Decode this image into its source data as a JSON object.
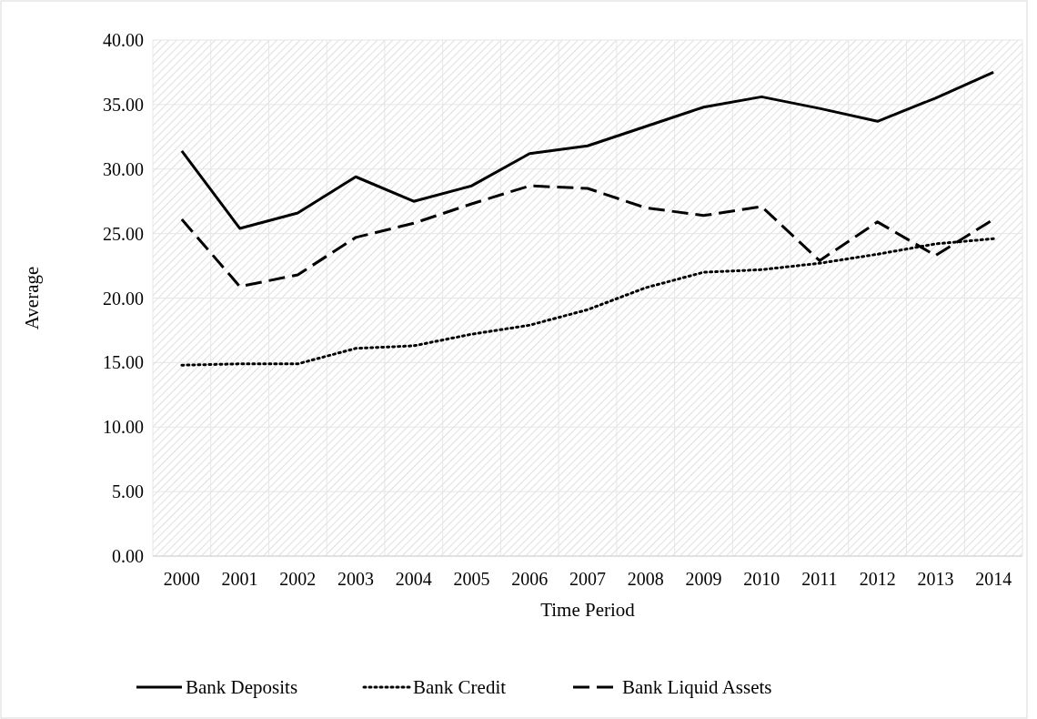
{
  "chart_data": {
    "type": "line",
    "xlabel": "Time Period",
    "ylabel": "Average",
    "categories": [
      "2000",
      "2001",
      "2002",
      "2003",
      "2004",
      "2005",
      "2006",
      "2007",
      "2008",
      "2009",
      "2010",
      "2011",
      "2012",
      "2013",
      "2014"
    ],
    "ylim": [
      0,
      40
    ],
    "yticks": [
      {
        "value": 0,
        "label": "0.00"
      },
      {
        "value": 5,
        "label": "5.00"
      },
      {
        "value": 10,
        "label": "10.00"
      },
      {
        "value": 15,
        "label": "15.00"
      },
      {
        "value": 20,
        "label": "20.00"
      },
      {
        "value": 25,
        "label": "25.00"
      },
      {
        "value": 30,
        "label": "30.00"
      },
      {
        "value": 35,
        "label": "35.00"
      },
      {
        "value": 40,
        "label": "40.00"
      }
    ],
    "grid": true,
    "legend": "bottom",
    "marker": "none",
    "series": [
      {
        "name": "Bank Deposits",
        "color": "#000000",
        "line_style": "solid",
        "values": [
          31.4,
          25.4,
          26.6,
          29.4,
          27.5,
          28.7,
          31.2,
          31.8,
          33.3,
          34.8,
          35.6,
          34.7,
          33.7,
          35.5,
          37.5
        ]
      },
      {
        "name": "Bank Credit",
        "color": "#000000",
        "line_style": "dotted",
        "values": [
          14.8,
          14.9,
          14.9,
          16.1,
          16.3,
          17.2,
          17.9,
          19.1,
          20.8,
          22.0,
          22.2,
          22.7,
          23.4,
          24.2,
          24.6
        ]
      },
      {
        "name": "Bank Liquid Assets",
        "color": "#000000",
        "line_style": "dashed",
        "values": [
          26.1,
          20.9,
          21.8,
          24.7,
          25.8,
          27.3,
          28.7,
          28.5,
          27.0,
          26.4,
          27.1,
          22.9,
          25.9,
          23.3,
          26.1
        ]
      }
    ]
  }
}
